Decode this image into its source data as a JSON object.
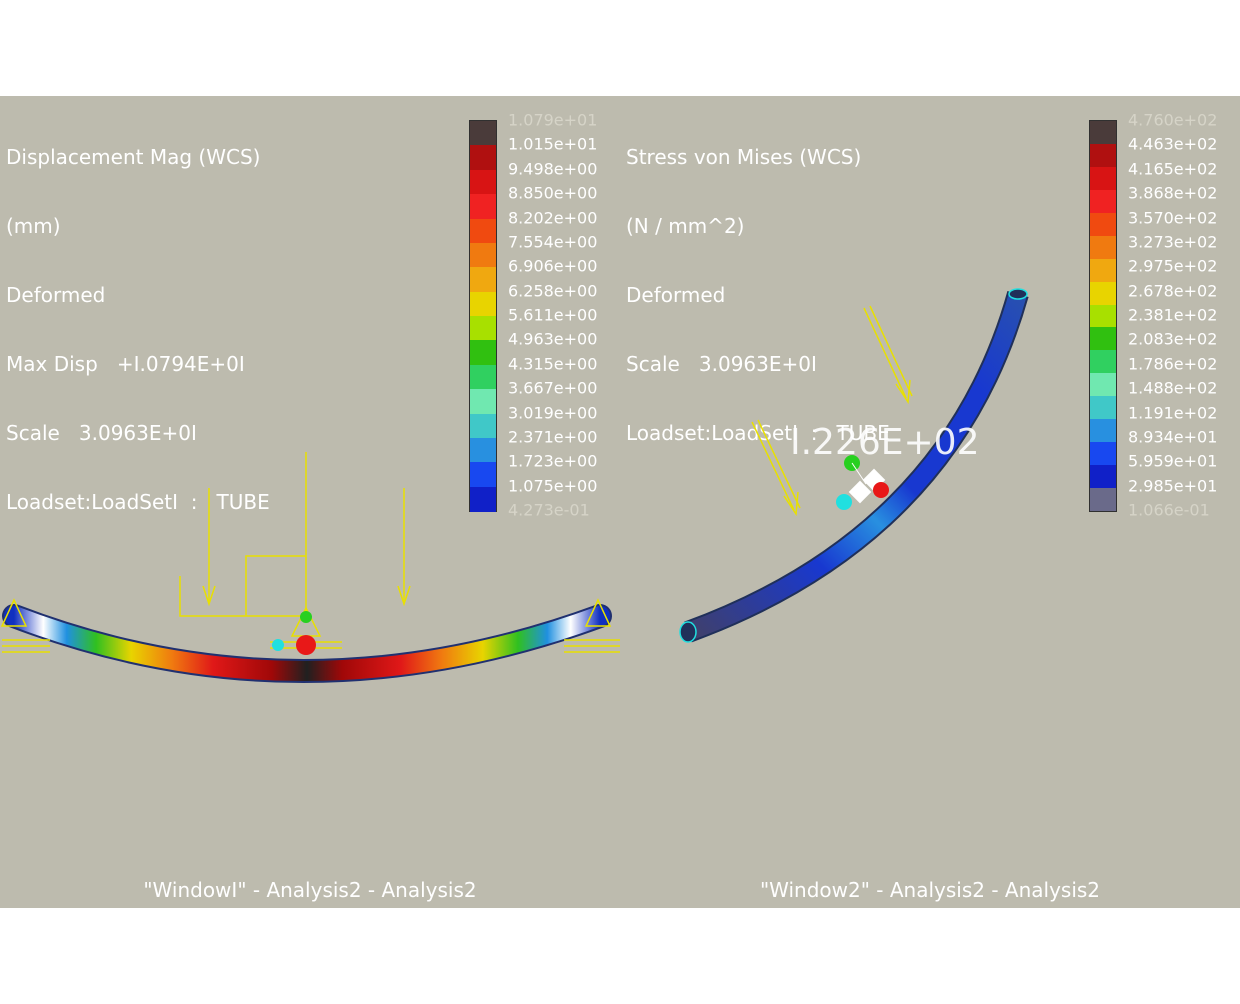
{
  "window1": {
    "info": {
      "result": "Displacement Mag (WCS)",
      "units": "(mm)",
      "mode": "Deformed",
      "max_disp": "Max Disp   +I.0794E+0I",
      "scale": "Scale   3.0963E+0I",
      "loadset": "Loadset:LoadSetI  :   TUBE"
    },
    "legend": {
      "labels": [
        "1.079e+01",
        "1.015e+01",
        "9.498e+00",
        "8.850e+00",
        "8.202e+00",
        "7.554e+00",
        "6.906e+00",
        "6.258e+00",
        "5.611e+00",
        "4.963e+00",
        "4.315e+00",
        "3.667e+00",
        "3.019e+00",
        "2.371e+00",
        "1.723e+00",
        "1.075e+00",
        "4.273e-01"
      ],
      "colors": [
        "#4a3b3a",
        "#b01010",
        "#d81414",
        "#f02222",
        "#f04a10",
        "#f07a10",
        "#f0a810",
        "#e8d400",
        "#a8e000",
        "#30c010",
        "#30d060",
        "#70e8b0",
        "#40c8c8",
        "#2890e0",
        "#1848f0",
        "#1020c8"
      ]
    },
    "footer": "\"WindowI\"  -  Analysis2  -  Analysis2"
  },
  "window2": {
    "info": {
      "result": "Stress von Mises (WCS)",
      "units": "(N / mm^2)",
      "mode": "Deformed",
      "scale": "Scale   3.0963E+0I",
      "loadset": "Loadset:LoadSetI  :   TUBE"
    },
    "legend": {
      "labels": [
        "4.760e+02",
        "4.463e+02",
        "4.165e+02",
        "3.868e+02",
        "3.570e+02",
        "3.273e+02",
        "2.975e+02",
        "2.678e+02",
        "2.381e+02",
        "2.083e+02",
        "1.786e+02",
        "1.488e+02",
        "1.191e+02",
        "8.934e+01",
        "5.959e+01",
        "2.985e+01",
        "1.066e-01"
      ],
      "colors": [
        "#4a3b3a",
        "#b01010",
        "#d81414",
        "#f02222",
        "#f04a10",
        "#f07a10",
        "#f0a810",
        "#e8d400",
        "#a8e000",
        "#30c010",
        "#30d060",
        "#70e8b0",
        "#40c8c8",
        "#2890e0",
        "#1848f0",
        "#1020c8",
        "#6a6a8a"
      ]
    },
    "probe_label": "I.226E+02",
    "footer": "\"Window2\"  -  Analysis2  -  Analysis2"
  }
}
